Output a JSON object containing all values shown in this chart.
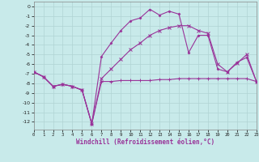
{
  "xlabel": "Windchill (Refroidissement éolien,°C)",
  "bg_color": "#c8eaea",
  "grid_color": "#b0d4d4",
  "line_color": "#993399",
  "series": {
    "line1_x": [
      0,
      1,
      2,
      3,
      4,
      5,
      6,
      7,
      8,
      9,
      10,
      11,
      12,
      13,
      14,
      15,
      16,
      17,
      18,
      19,
      20,
      21,
      22,
      23
    ],
    "line1_y": [
      -6.8,
      -7.3,
      -8.3,
      -8.1,
      -8.3,
      -8.7,
      -12.2,
      -7.8,
      -7.8,
      -7.7,
      -7.7,
      -7.7,
      -7.7,
      -7.6,
      -7.6,
      -7.5,
      -7.5,
      -7.5,
      -7.5,
      -7.5,
      -7.5,
      -7.5,
      -7.5,
      -7.8
    ],
    "line2_x": [
      0,
      1,
      2,
      3,
      4,
      5,
      6,
      7,
      8,
      9,
      10,
      11,
      12,
      13,
      14,
      15,
      16,
      17,
      18,
      19,
      20,
      21,
      22,
      23
    ],
    "line2_y": [
      -6.8,
      -7.3,
      -8.3,
      -8.1,
      -8.3,
      -8.7,
      -12.2,
      -5.2,
      -3.8,
      -2.5,
      -1.5,
      -1.2,
      -0.3,
      -0.9,
      -0.5,
      -0.8,
      -4.8,
      -3.0,
      -3.0,
      -6.5,
      -6.8,
      -5.8,
      -5.3,
      -7.8
    ],
    "line3_x": [
      0,
      1,
      2,
      3,
      4,
      5,
      6,
      7,
      8,
      9,
      10,
      11,
      12,
      13,
      14,
      15,
      16,
      17,
      18,
      19,
      20,
      21,
      22,
      23
    ],
    "line3_y": [
      -6.8,
      -7.3,
      -8.3,
      -8.1,
      -8.3,
      -8.7,
      -12.2,
      -7.5,
      -6.5,
      -5.5,
      -4.5,
      -3.8,
      -3.0,
      -2.5,
      -2.2,
      -2.0,
      -2.0,
      -2.5,
      -2.8,
      -6.0,
      -6.8,
      -5.9,
      -5.0,
      -7.8
    ]
  },
  "xlim": [
    0,
    23
  ],
  "ylim": [
    -12.8,
    0.5
  ],
  "yticks": [
    0,
    -1,
    -2,
    -3,
    -4,
    -5,
    -6,
    -7,
    -8,
    -9,
    -10,
    -11,
    -12
  ],
  "xticks": [
    0,
    1,
    2,
    3,
    4,
    5,
    6,
    7,
    8,
    9,
    10,
    11,
    12,
    13,
    14,
    15,
    16,
    17,
    18,
    19,
    20,
    21,
    22,
    23
  ]
}
